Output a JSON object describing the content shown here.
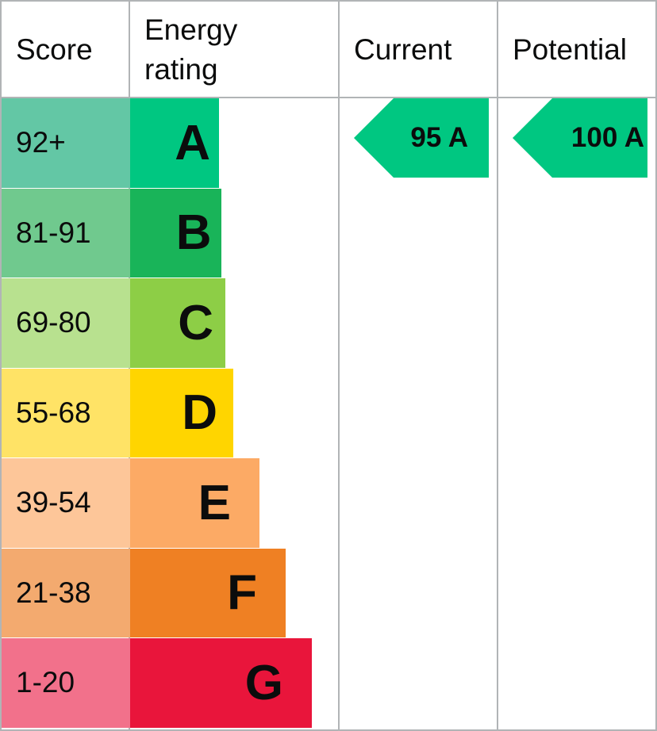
{
  "header": {
    "score": "Score",
    "energy_rating": "Energy\nrating",
    "current": "Current",
    "potential": "Potential"
  },
  "chart_data": {
    "type": "bar",
    "categories": [
      "92+",
      "81-91",
      "69-80",
      "55-68",
      "39-54",
      "21-38",
      "1-20"
    ],
    "bands": [
      {
        "letter": "A",
        "score_range": "92+",
        "color": "#00c781",
        "score_bg": "#63c7a5",
        "relative_length": 1
      },
      {
        "letter": "B",
        "score_range": "81-91",
        "color": "#19b459",
        "score_bg": "#70c98e",
        "relative_length": 2
      },
      {
        "letter": "C",
        "score_range": "69-80",
        "color": "#8dce46",
        "score_bg": "#b8e18f",
        "relative_length": 3
      },
      {
        "letter": "D",
        "score_range": "55-68",
        "color": "#ffd500",
        "score_bg": "#ffe366",
        "relative_length": 4
      },
      {
        "letter": "E",
        "score_range": "39-54",
        "color": "#fcaa65",
        "score_bg": "#fdc699",
        "relative_length": 5
      },
      {
        "letter": "F",
        "score_range": "21-38",
        "color": "#ef8023",
        "score_bg": "#f3aa6f",
        "relative_length": 6
      },
      {
        "letter": "G",
        "score_range": "1-20",
        "color": "#e9153b",
        "score_bg": "#f2718b",
        "relative_length": 7
      }
    ],
    "current": {
      "label": "95 A",
      "score": 95,
      "band": "A",
      "color": "#00c781"
    },
    "potential": {
      "label": "100 A",
      "score": 100,
      "band": "A",
      "color": "#00c781"
    }
  }
}
